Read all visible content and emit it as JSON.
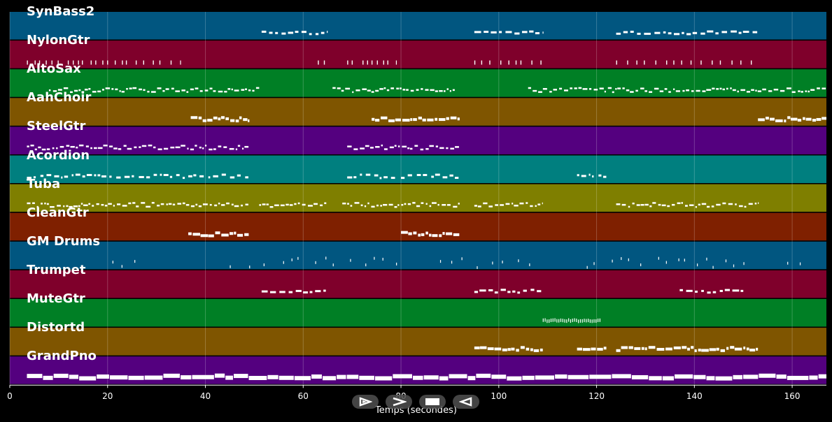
{
  "timeline": {
    "x_min": 0,
    "x_max": 167,
    "ticks": [
      0,
      20,
      40,
      60,
      80,
      100,
      120,
      140,
      160
    ],
    "tick_labels": [
      "0",
      "20",
      "40",
      "60",
      "80",
      "100",
      "120",
      "140",
      "160"
    ],
    "axis_title": "Temps (secondes)"
  },
  "tracks": [
    {
      "name": "SynBass2",
      "color": "#015680",
      "segments": [
        [
          51.5,
          65
        ],
        [
          95,
          109
        ],
        [
          124,
          153
        ]
      ],
      "style": "sparse"
    },
    {
      "name": "NylonGtr",
      "color": "#7f002b",
      "segments": [
        [
          3.5,
          35
        ],
        [
          63,
          65
        ],
        [
          69,
          79
        ],
        [
          95,
          109
        ],
        [
          124,
          153
        ]
      ],
      "style": "pluck"
    },
    {
      "name": "AltoSax",
      "color": "#007f25",
      "segments": [
        [
          8,
          51
        ],
        [
          66,
          91
        ],
        [
          106,
          167
        ]
      ],
      "style": "dense"
    },
    {
      "name": "AahChoir",
      "color": "#7f5500",
      "segments": [
        [
          37,
          49
        ],
        [
          74,
          92
        ],
        [
          153,
          167
        ]
      ],
      "style": "block"
    },
    {
      "name": "SteelGtr",
      "color": "#54007f",
      "segments": [
        [
          3.5,
          49
        ],
        [
          69,
          92
        ]
      ],
      "style": "dense"
    },
    {
      "name": "Acordion",
      "color": "#007f7f",
      "segments": [
        [
          3.5,
          36
        ],
        [
          36.5,
          49
        ],
        [
          69,
          79
        ],
        [
          80,
          92
        ],
        [
          116,
          122
        ]
      ],
      "style": "mixed"
    },
    {
      "name": "Tuba",
      "color": "#7f7f00",
      "segments": [
        [
          3.5,
          49
        ],
        [
          51,
          65
        ],
        [
          68,
          92
        ],
        [
          95,
          109
        ],
        [
          124,
          153
        ]
      ],
      "style": "dense"
    },
    {
      "name": "CleanGtr",
      "color": "#7f2000",
      "segments": [
        [
          36.5,
          49
        ],
        [
          80,
          92
        ]
      ],
      "style": "block"
    },
    {
      "name": "GM Drums",
      "color": "#015680",
      "segments": [
        [
          21,
          28
        ],
        [
          45,
          80
        ],
        [
          88,
          108
        ],
        [
          118,
          152
        ],
        [
          159,
          163
        ]
      ],
      "style": "ticks"
    },
    {
      "name": "Trumpet",
      "color": "#7f002b",
      "segments": [
        [
          51.5,
          65
        ],
        [
          95,
          109
        ],
        [
          137,
          150
        ]
      ],
      "style": "sparse"
    },
    {
      "name": "MuteGtr",
      "color": "#007f25",
      "segments": [
        [
          109,
          121
        ]
      ],
      "style": "pluck-small"
    },
    {
      "name": "Distortd",
      "color": "#7f5500",
      "segments": [
        [
          95,
          109
        ],
        [
          116,
          122
        ],
        [
          124,
          153
        ]
      ],
      "style": "block"
    },
    {
      "name": "GrandPno",
      "color": "#54007f",
      "segments": [
        [
          3.5,
          167
        ]
      ],
      "style": "thick"
    }
  ],
  "controls": [
    {
      "name": "play-icon",
      "label": "play"
    },
    {
      "name": "forward-icon",
      "label": "forward"
    },
    {
      "name": "stop-icon",
      "label": "stop"
    },
    {
      "name": "rewind-icon",
      "label": "back"
    }
  ]
}
